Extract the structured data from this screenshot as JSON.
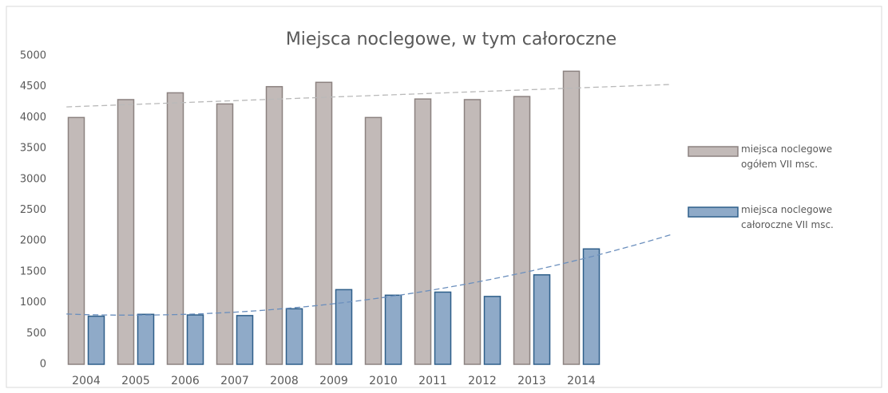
{
  "chart_data": {
    "type": "bar",
    "title": "Miejsca noclegowe, w tym całoroczne",
    "categories": [
      "2004",
      "2005",
      "2006",
      "2007",
      "2008",
      "2009",
      "2010",
      "2011",
      "2012",
      "2013",
      "2014"
    ],
    "series": [
      {
        "name": "miejsca noclegowe ogółem VII msc.",
        "color": "#c2bab8",
        "stroke": "#8c8280",
        "trendline": "linear",
        "trend_color": "#b9b9b9",
        "values": [
          4000,
          4290,
          4400,
          4220,
          4500,
          4570,
          4000,
          4300,
          4290,
          4340,
          4750
        ]
      },
      {
        "name": "miejsca noclegowe całoroczne VII msc.",
        "color": "#8faac8",
        "stroke": "#2f5f8a",
        "trendline": "poly2",
        "trend_color": "#6b8fbd",
        "values": [
          780,
          810,
          800,
          790,
          900,
          1210,
          1120,
          1170,
          1100,
          1450,
          1870
        ]
      }
    ],
    "ylim": [
      0,
      5000
    ],
    "yticks": [
      0,
      500,
      1000,
      1500,
      2000,
      2500,
      3000,
      3500,
      4000,
      4500,
      5000
    ],
    "grid": false,
    "legend": "right"
  }
}
